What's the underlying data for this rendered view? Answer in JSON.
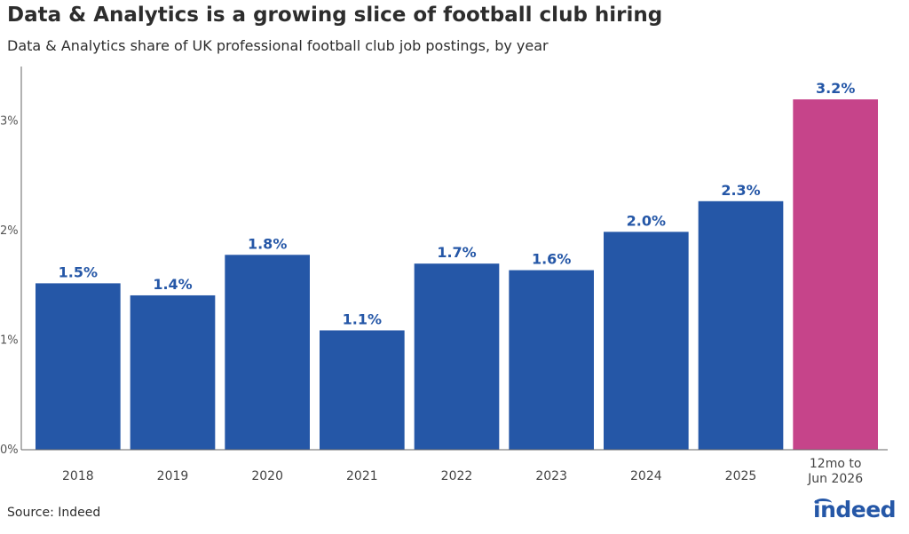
{
  "header": {
    "title": "Data & Analytics is a growing slice of football club hiring",
    "subtitle": "Data & Analytics share of UK professional football club job postings, by year"
  },
  "footer": {
    "source": "Source: Indeed",
    "logo_text": "indeed"
  },
  "colors": {
    "bar_primary": "#2557a7",
    "bar_highlight": "#c6448a",
    "label": "#2557a7"
  },
  "chart_data": {
    "type": "bar",
    "categories": [
      "2018",
      "2019",
      "2020",
      "2021",
      "2022",
      "2023",
      "2024",
      "2025",
      "12mo to\nJun 2026"
    ],
    "values": [
      1.52,
      1.41,
      1.78,
      1.09,
      1.7,
      1.64,
      1.99,
      2.27,
      3.2
    ],
    "data_labels": [
      "1.5%",
      "1.4%",
      "1.8%",
      "1.1%",
      "1.7%",
      "1.6%",
      "2.0%",
      "2.3%",
      "3.2%"
    ],
    "highlight_index": 8,
    "title": "Data & Analytics is a growing slice of football club hiring",
    "xlabel": "",
    "ylabel": "",
    "ylim": [
      0,
      3.5
    ],
    "yticks": [
      0,
      1,
      2,
      3
    ],
    "ytick_labels": [
      "0%",
      "1%",
      "2%",
      "3%"
    ],
    "grid": false,
    "legend": "none"
  }
}
